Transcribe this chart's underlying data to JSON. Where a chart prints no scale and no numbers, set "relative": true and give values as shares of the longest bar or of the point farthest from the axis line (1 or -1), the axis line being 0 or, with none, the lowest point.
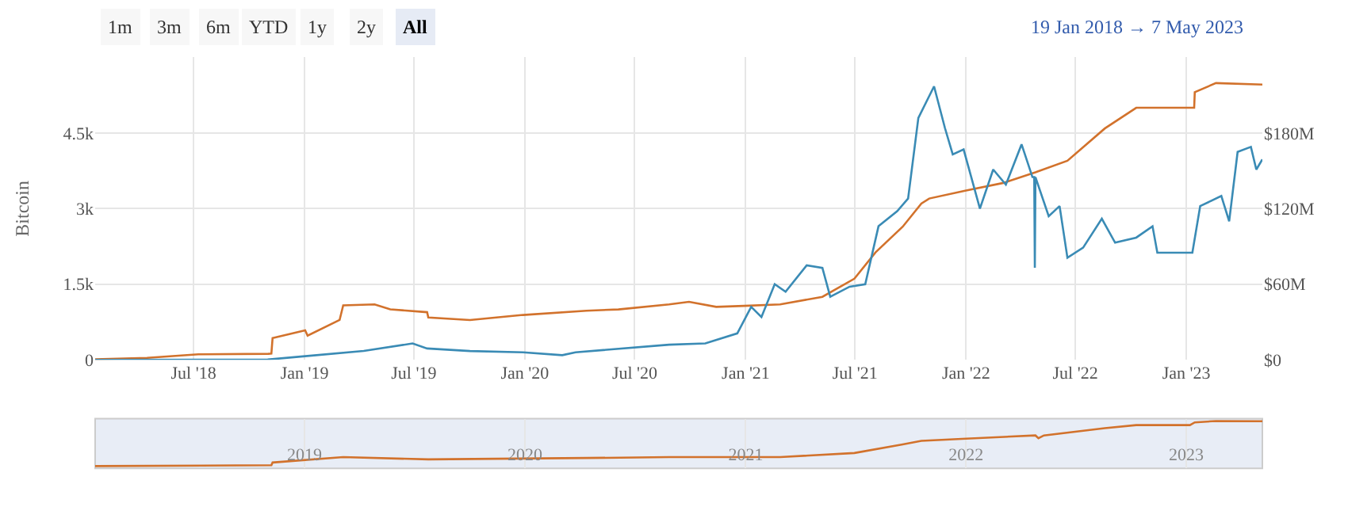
{
  "chart_data": [
    {
      "type": "line",
      "ylabel": "Bitcoin",
      "grid": true,
      "annotations": [
        "1m",
        "3m",
        "6m",
        "YTD",
        "1y",
        "2y",
        "All",
        "19 Jan 2018 → 7 May 2023"
      ],
      "xlim": [
        "2018-01-19",
        "2023-05-07"
      ],
      "xticks": [
        {
          "value": "2018-07-01",
          "label": "Jul '18"
        },
        {
          "value": "2019-01-01",
          "label": "Jan '19"
        },
        {
          "value": "2019-07-01",
          "label": "Jul '19"
        },
        {
          "value": "2020-01-01",
          "label": "Jan '20"
        },
        {
          "value": "2020-07-01",
          "label": "Jul '20"
        },
        {
          "value": "2021-01-01",
          "label": "Jan '21"
        },
        {
          "value": "2021-07-01",
          "label": "Jul '21"
        },
        {
          "value": "2022-01-01",
          "label": "Jan '22"
        },
        {
          "value": "2022-07-01",
          "label": "Jul '22"
        },
        {
          "value": "2023-01-01",
          "label": "Jan '23"
        }
      ],
      "ylim": [
        0,
        6000
      ],
      "yticks": [
        0,
        {
          "value": 1500,
          "label": "1.5k"
        },
        {
          "value": 3000,
          "label": "3k"
        },
        {
          "value": 4500,
          "label": "4.5k"
        }
      ],
      "y2lim": [
        0,
        240
      ],
      "y2ticks": [
        {
          "value": 0,
          "label": "$0"
        },
        {
          "value": 60,
          "label": "$60M"
        },
        {
          "value": 120,
          "label": "$120M"
        },
        {
          "value": 180,
          "label": "$180M"
        }
      ],
      "series": [
        {
          "color": "#d2722c",
          "x": [
            "2018-01-19",
            "2018-04-15",
            "2018-07-09",
            "2018-11-02",
            "2018-11-07",
            "2018-11-09",
            "2019-01-02",
            "2019-01-06",
            "2019-02-28",
            "2019-03-06",
            "2019-04-27",
            "2019-05-23",
            "2019-07-23",
            "2019-07-25",
            "2019-10-02",
            "2019-12-29",
            "2020-04-12",
            "2020-06-04",
            "2020-08-27",
            "2020-09-29",
            "2020-11-13",
            "2020-12-29",
            "2021-02-27",
            "2021-05-08",
            "2021-06-30",
            "2021-08-04",
            "2021-09-18",
            "2021-10-19",
            "2021-11-01",
            "2022-01-01",
            "2022-03-04",
            "2022-04-26",
            "2022-06-18",
            "2022-08-19",
            "2022-10-10",
            "2023-01-07",
            "2023-01-14",
            "2023-01-15",
            "2023-02-19",
            "2023-05-07"
          ],
          "values": [
            10,
            40,
            110,
            120,
            125,
            430,
            585,
            480,
            790,
            1080,
            1100,
            1000,
            945,
            840,
            790,
            890,
            975,
            1000,
            1100,
            1150,
            1050,
            1070,
            1100,
            1250,
            1610,
            2130,
            2640,
            3100,
            3200,
            3360,
            3510,
            3720,
            3950,
            4590,
            5000,
            5000,
            5000,
            5310,
            5490,
            5460
          ]
        },
        {
          "color": "#3a8bb5",
          "axis": "y2",
          "x": [
            "2018-01-19",
            "2018-11-01",
            "2019-01-02",
            "2019-04-09",
            "2019-06-29",
            "2019-07-23",
            "2019-10-02",
            "2019-12-29",
            "2020-03-03",
            "2020-03-25",
            "2020-08-27",
            "2020-10-26",
            "2020-12-18",
            "2021-01-10",
            "2021-01-27",
            "2021-02-18",
            "2021-03-08",
            "2021-04-12",
            "2021-05-08",
            "2021-05-21",
            "2021-06-22",
            "2021-07-18",
            "2021-08-09",
            "2021-09-09",
            "2021-09-27",
            "2021-10-14",
            "2021-11-09",
            "2021-11-27",
            "2021-12-10",
            "2021-12-28",
            "2022-01-24",
            "2022-02-15",
            "2022-03-08",
            "2022-04-03",
            "2022-04-21",
            "2022-04-24",
            "2022-04-25",
            "2022-04-26",
            "2022-05-18",
            "2022-06-05",
            "2022-06-18",
            "2022-07-14",
            "2022-08-14",
            "2022-09-05",
            "2022-10-10",
            "2022-11-06",
            "2022-11-14",
            "2022-12-28",
            "2023-01-11",
            "2023-01-24",
            "2023-02-28",
            "2023-03-13",
            "2023-03-27",
            "2023-04-18",
            "2023-04-27",
            "2023-05-07"
          ],
          "values": [
            0,
            0.2,
            2.9,
            7,
            13,
            9,
            7,
            6,
            3.7,
            6,
            12,
            13,
            21,
            42,
            34,
            60,
            54,
            75,
            73,
            50,
            58,
            60,
            106,
            118,
            128,
            192,
            217,
            184,
            163,
            167,
            120,
            151,
            139,
            171,
            145,
            145,
            73,
            145,
            114,
            122,
            81,
            89,
            112,
            93,
            97,
            106,
            85,
            85,
            85,
            122,
            130,
            110,
            165,
            169,
            151,
            159
          ]
        }
      ]
    },
    {
      "type": "line",
      "relative": true,
      "grid": "x",
      "tick_labels": "x",
      "xlim": [
        "2018-01-19",
        "2023-05-07"
      ],
      "xticks": [
        {
          "value": "2019-01-01",
          "label": "2019"
        },
        {
          "value": "2020-01-01",
          "label": "2020"
        },
        {
          "value": "2021-01-01",
          "label": "2021"
        },
        {
          "value": "2022-01-01",
          "label": "2022"
        },
        {
          "value": "2023-01-01",
          "label": "2023"
        }
      ],
      "series": [
        {
          "color": "#d2722c",
          "x": [
            "2018-01-19",
            "2018-11-07",
            "2018-11-09",
            "2019-03-06",
            "2019-07-25",
            "2020-04-12",
            "2020-08-27",
            "2021-02-27",
            "2021-06-30",
            "2021-09-18",
            "2021-10-19",
            "2022-01-01",
            "2022-04-26",
            "2022-05-01",
            "2022-05-10",
            "2022-08-19",
            "2022-10-10",
            "2023-01-07",
            "2023-01-15",
            "2023-02-19",
            "2023-05-07"
          ],
          "values": [
            0,
            0.02,
            0.08,
            0.2,
            0.15,
            0.18,
            0.2,
            0.2,
            0.29,
            0.48,
            0.56,
            0.61,
            0.68,
            0.62,
            0.68,
            0.84,
            0.91,
            0.91,
            0.97,
            1.0,
            0.995
          ]
        }
      ]
    }
  ]
}
